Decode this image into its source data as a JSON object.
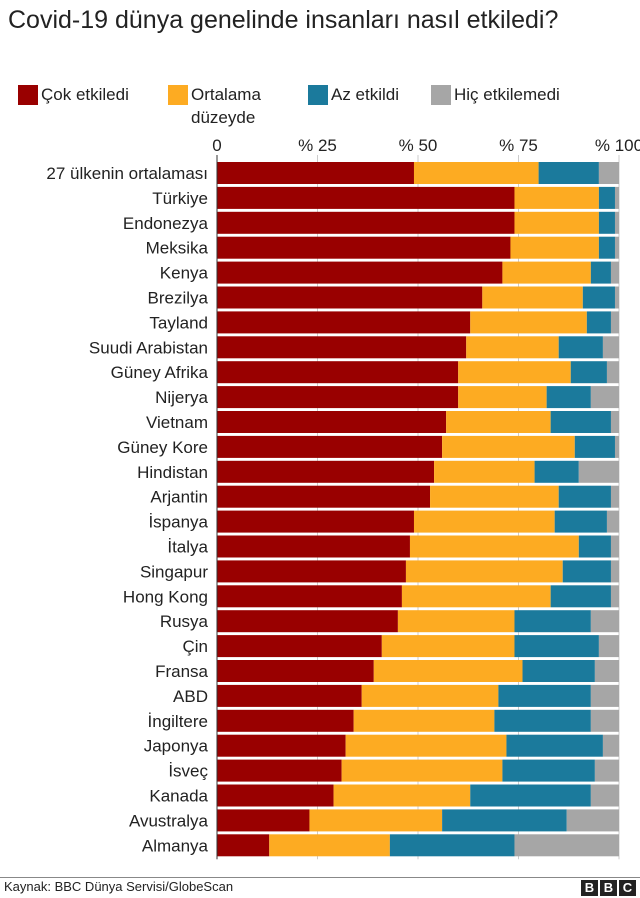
{
  "chart_data": {
    "type": "bar",
    "orientation": "horizontal",
    "stacked": true,
    "title": "Covid-19 dünya genelinde insanları nasıl etkiledi?",
    "xlim": [
      0,
      100
    ],
    "x_ticks": [
      "0",
      "% 25",
      "% 50",
      "% 75",
      "% 100"
    ],
    "x_tick_values": [
      0,
      25,
      50,
      75,
      100
    ],
    "grid": true,
    "legend_position": "top",
    "categories": [
      "27 ülkenin ortalaması",
      "Türkiye",
      "Endonezya",
      "Meksika",
      "Kenya",
      "Brezilya",
      "Tayland",
      "Suudi Arabistan",
      "Güney Afrika",
      "Nijerya",
      "Vietnam",
      "Güney Kore",
      "Hindistan",
      "Arjantin",
      "İspanya",
      "İtalya",
      "Singapur",
      "Hong Kong",
      "Rusya",
      "Çin",
      "Fransa",
      "ABD",
      "İngiltere",
      "Japonya",
      "İsveç",
      "Kanada",
      "Avustralya",
      "Almanya"
    ],
    "series": [
      {
        "name": "Çok etkiledi",
        "color": "#990000",
        "values": [
          49,
          74,
          74,
          73,
          71,
          66,
          63,
          62,
          60,
          60,
          57,
          56,
          54,
          53,
          49,
          48,
          47,
          46,
          45,
          41,
          39,
          36,
          34,
          32,
          31,
          29,
          23,
          13
        ]
      },
      {
        "name": "Ortalama düzeyde",
        "color": "#fdab22",
        "values": [
          31,
          21,
          21,
          22,
          22,
          25,
          29,
          23,
          28,
          22,
          26,
          33,
          25,
          32,
          35,
          42,
          39,
          37,
          29,
          33,
          37,
          34,
          35,
          40,
          40,
          34,
          33,
          30
        ]
      },
      {
        "name": "Az etkildi",
        "color": "#1b7a9c",
        "values": [
          15,
          4,
          4,
          4,
          5,
          8,
          6,
          11,
          9,
          11,
          15,
          10,
          11,
          13,
          13,
          8,
          12,
          15,
          19,
          21,
          18,
          23,
          24,
          24,
          23,
          30,
          31,
          31
        ]
      },
      {
        "name": "Hiç etkilemedi",
        "color": "#a6a6a6",
        "values": [
          5,
          1,
          1,
          1,
          2,
          1,
          2,
          4,
          3,
          7,
          2,
          1,
          10,
          2,
          3,
          2,
          2,
          2,
          7,
          5,
          6,
          7,
          7,
          4,
          6,
          7,
          13,
          26
        ]
      }
    ]
  },
  "legend_labels": [
    "Çok etkiledi",
    "Ortalama düzeyde",
    "Az etkildi",
    "Hiç etkilemedi"
  ],
  "footer": {
    "source": "Kaynak: BBC Dünya Servisi/GlobeScan",
    "logo_letters": [
      "B",
      "B",
      "C"
    ]
  }
}
